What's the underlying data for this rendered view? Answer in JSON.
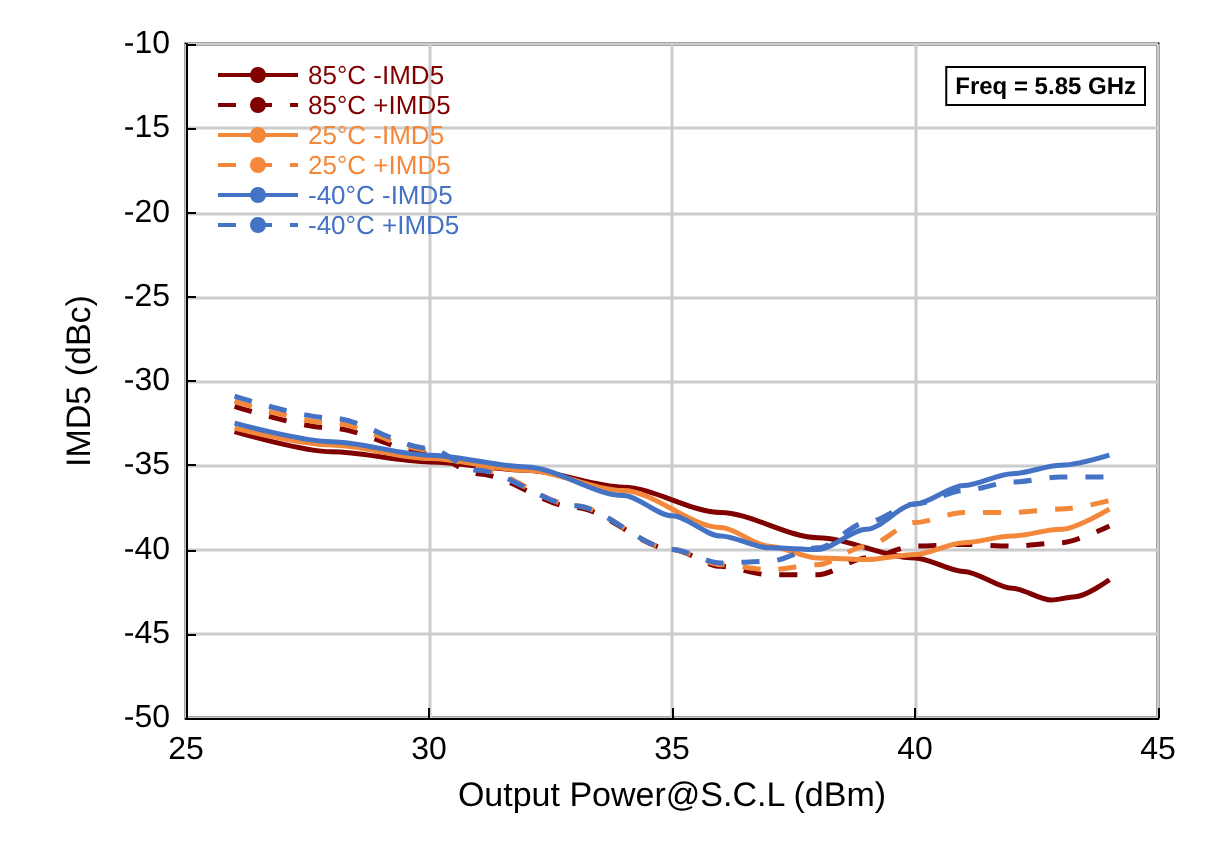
{
  "chart_data": {
    "type": "line",
    "xlabel": "Output Power@S.C.L (dBm)",
    "ylabel": "IMD5 (dBc)",
    "xlim": [
      25,
      45
    ],
    "xticks": [
      25,
      30,
      35,
      40,
      45
    ],
    "ylim": [
      -50,
      -10
    ],
    "yticks": [
      -50,
      -45,
      -40,
      -35,
      -30,
      -25,
      -20,
      -15,
      -10
    ],
    "grid": true,
    "legend": "top left",
    "annotations": [
      "Freq = 5.85 GHz"
    ],
    "series": [
      {
        "name": "85°C -IMD5",
        "color": "#800000",
        "line_style": "solid",
        "x": [
          26,
          28,
          30,
          32,
          34,
          36,
          38,
          40,
          41,
          42,
          42.8,
          43.3,
          44
        ],
        "values": [
          -33,
          -34.2,
          -34.8,
          -35.3,
          -36.3,
          -37.8,
          -39.3,
          -40.5,
          -41.3,
          -42.3,
          -43,
          -42.8,
          -41.8
        ]
      },
      {
        "name": "85°C +IMD5",
        "color": "#800000",
        "line_style": "dashed",
        "x": [
          26,
          28,
          30,
          31,
          33,
          35,
          36,
          37,
          38,
          39,
          40,
          41,
          42,
          43,
          44
        ],
        "values": [
          -31.5,
          -32.8,
          -34.3,
          -35.5,
          -37.5,
          -40,
          -41,
          -41.5,
          -41.5,
          -40.5,
          -39.8,
          -39.7,
          -39.8,
          -39.6,
          -38.6
        ]
      },
      {
        "name": "25°C -IMD5",
        "color": "#f4883a",
        "line_style": "solid",
        "x": [
          26,
          28,
          30,
          32,
          34,
          36,
          37,
          38,
          39,
          40,
          41,
          42,
          43,
          44
        ],
        "values": [
          -32.8,
          -33.8,
          -34.6,
          -35.3,
          -36.5,
          -38.7,
          -39.8,
          -40.5,
          -40.6,
          -40.3,
          -39.6,
          -39.2,
          -38.8,
          -37.6
        ]
      },
      {
        "name": "25°C +IMD5",
        "color": "#f4883a",
        "line_style": "dashed",
        "x": [
          26,
          28,
          30,
          31,
          33,
          35,
          36,
          37,
          38,
          39,
          40,
          41,
          42,
          43,
          44
        ],
        "values": [
          -31.2,
          -32.5,
          -34.1,
          -35.2,
          -37.4,
          -40,
          -40.9,
          -41.2,
          -40.9,
          -39.8,
          -38.4,
          -37.8,
          -37.8,
          -37.6,
          -37.1
        ]
      },
      {
        "name": "-40°C -IMD5",
        "color": "#4472c4",
        "line_style": "solid",
        "x": [
          26,
          28,
          30,
          32,
          34,
          35,
          36,
          37,
          38,
          39,
          40,
          41,
          42,
          43,
          44
        ],
        "values": [
          -32.5,
          -33.6,
          -34.4,
          -35.1,
          -36.8,
          -38,
          -39.2,
          -39.9,
          -40,
          -38.8,
          -37.3,
          -36.2,
          -35.5,
          -35,
          -34.4
        ]
      },
      {
        "name": "-40°C +IMD5",
        "color": "#4472c4",
        "line_style": "dashed",
        "x": [
          26,
          28,
          30,
          31,
          33,
          35,
          36,
          37,
          38,
          39,
          40,
          41,
          42,
          43,
          44
        ],
        "values": [
          -30.9,
          -32.2,
          -34,
          -35.3,
          -37.4,
          -40,
          -40.8,
          -40.7,
          -39.9,
          -38.4,
          -37.3,
          -36.5,
          -36,
          -35.7,
          -35.7
        ]
      }
    ]
  }
}
